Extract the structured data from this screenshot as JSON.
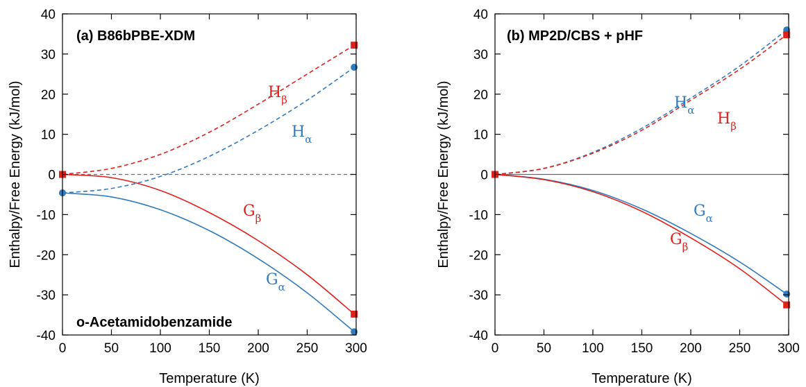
{
  "chart_data": [
    {
      "type": "line",
      "title": "(a) B86bPBE-XDM",
      "annotation": "o-Acetamidobenzamide",
      "xlabel": "Temperature (K)",
      "ylabel": "Enthalpy/Free Energy (kJ/mol)",
      "xlim": [
        0,
        300
      ],
      "ylim": [
        -40,
        40
      ],
      "xticks": [
        0,
        50,
        100,
        150,
        200,
        250,
        300
      ],
      "yticks": [
        -40,
        -30,
        -20,
        -10,
        0,
        10,
        20,
        30,
        40
      ],
      "zero_line": "dashed",
      "series": [
        {
          "label_main": "H",
          "label_sub": "β",
          "color": "#e0201b",
          "style": "dashed",
          "marker": "square",
          "x": [
            0,
            50,
            100,
            150,
            200,
            250,
            298
          ],
          "y": [
            0,
            1.5,
            5.0,
            10.5,
            17.5,
            25.0,
            32.2
          ]
        },
        {
          "label_main": "H",
          "label_sub": "α",
          "color": "#2f7bbd",
          "style": "dashed",
          "marker": "circle",
          "x": [
            0,
            50,
            100,
            150,
            200,
            250,
            298
          ],
          "y": [
            -4.6,
            -3.5,
            -0.5,
            4.5,
            11.0,
            18.5,
            26.7
          ]
        },
        {
          "label_main": "G",
          "label_sub": "β",
          "color": "#e0201b",
          "style": "solid",
          "marker": "square",
          "x": [
            0,
            50,
            100,
            150,
            200,
            250,
            298
          ],
          "y": [
            0,
            -0.8,
            -4.0,
            -9.5,
            -16.5,
            -25.0,
            -34.8
          ]
        },
        {
          "label_main": "G",
          "label_sub": "α",
          "color": "#2f7bbd",
          "style": "solid",
          "marker": "circle",
          "x": [
            0,
            50,
            100,
            150,
            200,
            250,
            298
          ],
          "y": [
            -4.6,
            -5.6,
            -8.8,
            -14.0,
            -21.0,
            -29.5,
            -39.2
          ]
        }
      ]
    },
    {
      "type": "line",
      "title": "(b) MP2D/CBS + pHF",
      "xlabel": "Temperature (K)",
      "ylabel": "Enthalpy/Free Energy (kJ/mol)",
      "xlim": [
        0,
        300
      ],
      "ylim": [
        -40,
        40
      ],
      "xticks": [
        0,
        50,
        100,
        150,
        200,
        250,
        300
      ],
      "yticks": [
        -40,
        -30,
        -20,
        -10,
        0,
        10,
        20,
        30,
        40
      ],
      "zero_line": "solid",
      "series": [
        {
          "label_main": "H",
          "label_sub": "α",
          "color": "#2f7bbd",
          "style": "dashed",
          "marker": "circle",
          "x": [
            0,
            50,
            100,
            150,
            200,
            250,
            298
          ],
          "y": [
            0,
            1.5,
            5.5,
            11.5,
            19.0,
            27.0,
            36.0
          ]
        },
        {
          "label_main": "H",
          "label_sub": "β",
          "color": "#e0201b",
          "style": "dashed",
          "marker": "square",
          "x": [
            0,
            50,
            100,
            150,
            200,
            250,
            298
          ],
          "y": [
            0,
            1.5,
            5.3,
            11.0,
            18.5,
            26.2,
            34.8
          ]
        },
        {
          "label_main": "G",
          "label_sub": "α",
          "color": "#2f7bbd",
          "style": "solid",
          "marker": "circle",
          "x": [
            0,
            50,
            100,
            150,
            200,
            250,
            298
          ],
          "y": [
            0,
            -1.2,
            -4.0,
            -8.6,
            -14.7,
            -21.8,
            -29.8
          ]
        },
        {
          "label_main": "G",
          "label_sub": "β",
          "color": "#e0201b",
          "style": "solid",
          "marker": "square",
          "x": [
            0,
            50,
            100,
            150,
            200,
            250,
            298
          ],
          "y": [
            0,
            -1.3,
            -4.3,
            -9.2,
            -15.8,
            -23.5,
            -32.5
          ]
        }
      ]
    }
  ]
}
